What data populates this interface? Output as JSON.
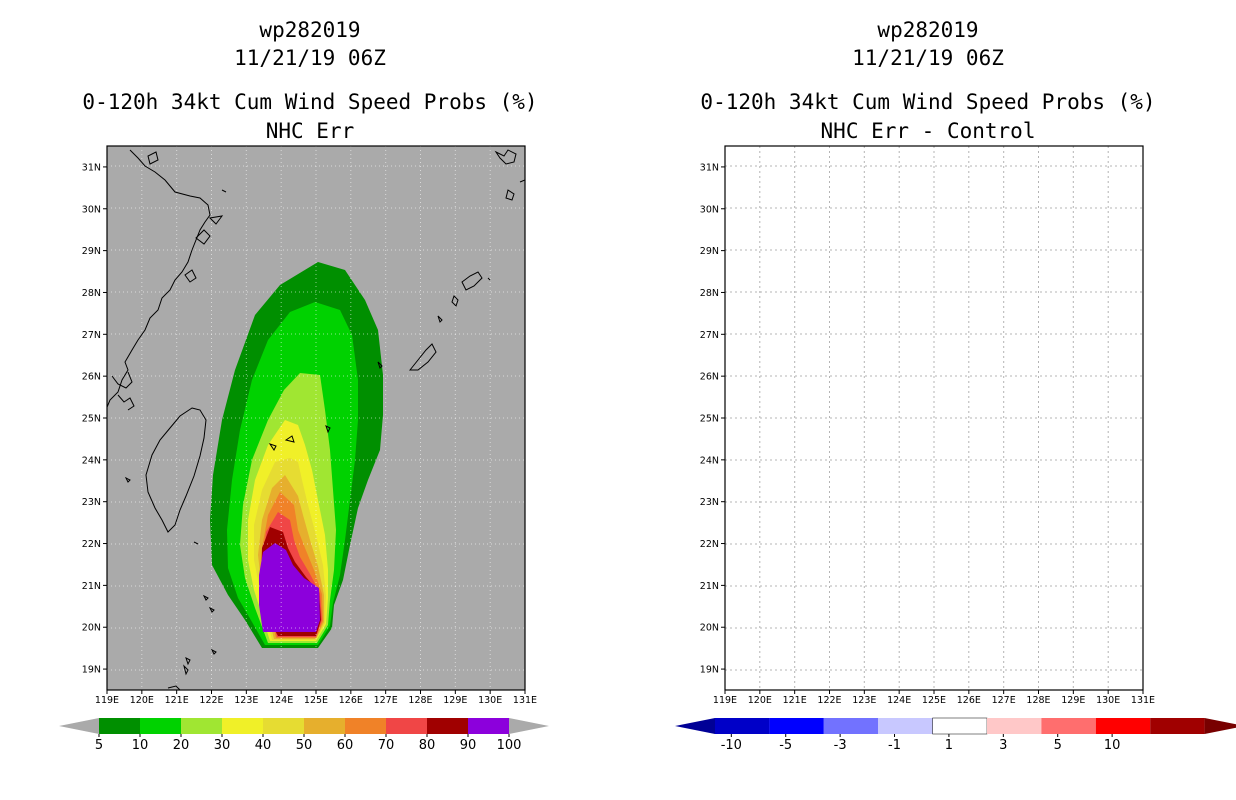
{
  "left_panel": {
    "title_line1": "wp282019",
    "title_line2": "11/21/19 06Z",
    "title_line3": "0-120h 34kt Cum Wind Speed Probs (%)",
    "title_line4": "NHC Err"
  },
  "right_panel": {
    "title_line1": "wp282019",
    "title_line2": "11/21/19 06Z",
    "title_line3": "0-120h 34kt Cum Wind Speed Probs (%)",
    "title_line4": "NHC Err - Control"
  },
  "colors": {
    "background": "#aaaaaa",
    "coast": "#000000",
    "prob_levels": [
      "#008f00",
      "#00d200",
      "#a0e632",
      "#f0f028",
      "#e6dc32",
      "#e6af2d",
      "#f08228",
      "#f04646",
      "#a00000",
      "#8c00dc"
    ],
    "diff_levels": [
      "#0000c8",
      "#0000ff",
      "#7272ff",
      "#c8c8ff",
      "#ffffff",
      "#ffc8c8",
      "#ff6e6e",
      "#ff0000",
      "#a00000"
    ]
  },
  "chart_data": [
    {
      "type": "contour-map",
      "title": "0-120h 34kt Cum Wind Speed Probs (%)",
      "subtitle": "NHC Err",
      "storm": "wp282019",
      "time": "11/21/19 06Z",
      "xlim": [
        119,
        131
      ],
      "ylim": [
        18.5,
        31.5
      ],
      "x_ticks": [
        "119E",
        "120E",
        "121E",
        "122E",
        "123E",
        "124E",
        "125E",
        "126E",
        "127E",
        "128E",
        "129E",
        "130E",
        "131E"
      ],
      "y_ticks": [
        "19N",
        "20N",
        "21N",
        "22N",
        "23N",
        "24N",
        "25N",
        "26N",
        "27N",
        "28N",
        "29N",
        "30N",
        "31N"
      ],
      "colorbar_labels": [
        "5",
        "10",
        "20",
        "30",
        "40",
        "50",
        "60",
        "70",
        "80",
        "90",
        "100"
      ],
      "levels": [
        5,
        10,
        20,
        30,
        40,
        50,
        60,
        70,
        80,
        90,
        100
      ]
    },
    {
      "type": "contour-map",
      "title": "0-120h 34kt Cum Wind Speed Probs (%)",
      "subtitle": "NHC Err - Control",
      "storm": "wp282019",
      "time": "11/21/19 06Z",
      "xlim": [
        119,
        131
      ],
      "ylim": [
        18.5,
        31.5
      ],
      "x_ticks": [
        "119E",
        "120E",
        "121E",
        "122E",
        "123E",
        "124E",
        "125E",
        "126E",
        "127E",
        "128E",
        "129E",
        "130E",
        "131E"
      ],
      "y_ticks": [
        "19N",
        "20N",
        "21N",
        "22N",
        "23N",
        "24N",
        "25N",
        "26N",
        "27N",
        "28N",
        "29N",
        "30N",
        "31N"
      ],
      "colorbar_labels": [
        "-10",
        "-5",
        "-3",
        "-1",
        "1",
        "3",
        "5",
        "10"
      ],
      "levels": [
        -10,
        -5,
        -3,
        -1,
        1,
        3,
        5,
        10
      ]
    }
  ]
}
